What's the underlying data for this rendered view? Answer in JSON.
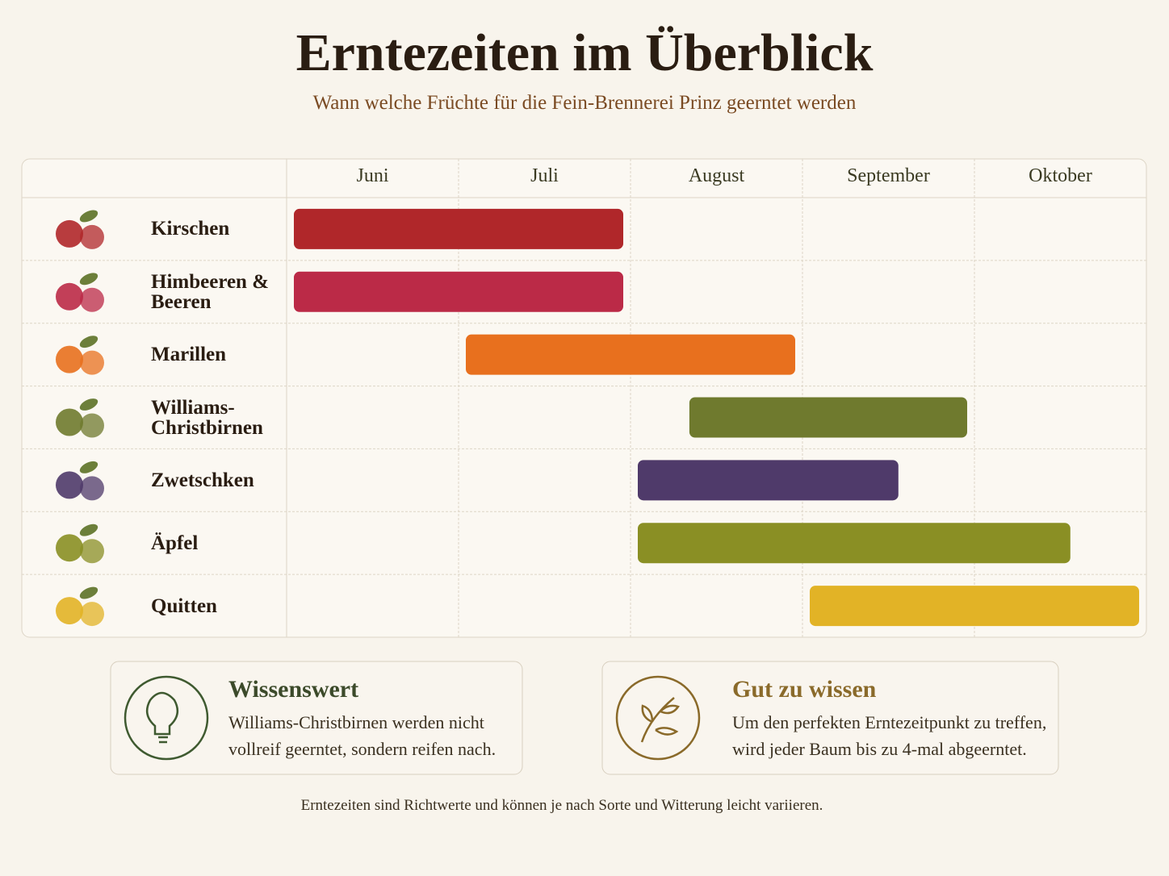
{
  "chart_data": {
    "type": "gantt",
    "title": "Erntezeiten im Überblick",
    "subtitle": "Wann welche Früchte für die Fein-Brennerei Prinz geerntet werden",
    "months": [
      "Juni",
      "Juli",
      "August",
      "September",
      "Oktober"
    ],
    "xlim": [
      0,
      5
    ],
    "categories": [
      "Kirschen",
      "Himbeeren & Beeren",
      "Marillen",
      "Williams-Christbirnen",
      "Zwetschken",
      "Äpfel",
      "Quitten"
    ],
    "starts": [
      0,
      0,
      1,
      2.3,
      2,
      2,
      3
    ],
    "ends": [
      2,
      2,
      3,
      4,
      3.6,
      4.6,
      5
    ],
    "colors": [
      "#b0272a",
      "#bb2a47",
      "#e8701e",
      "#6f7a2e",
      "#4f3a6a",
      "#8a8f24",
      "#e2b326"
    ],
    "grid": true
  },
  "notes": [
    {
      "title": "Wissenswert",
      "text": "Williams-Christbirnen werden nicht vollreif geerntet, sondern reifen nach."
    },
    {
      "title": "Gut zu wissen",
      "text": "Um den perfekten Erntezeitpunkt zu treffen, wird jeder Baum bis zu 4-mal abgeerntet."
    }
  ],
  "footnote": "Erntezeiten sind Richtwerte und können je nach Sorte und Witterung leicht variieren."
}
